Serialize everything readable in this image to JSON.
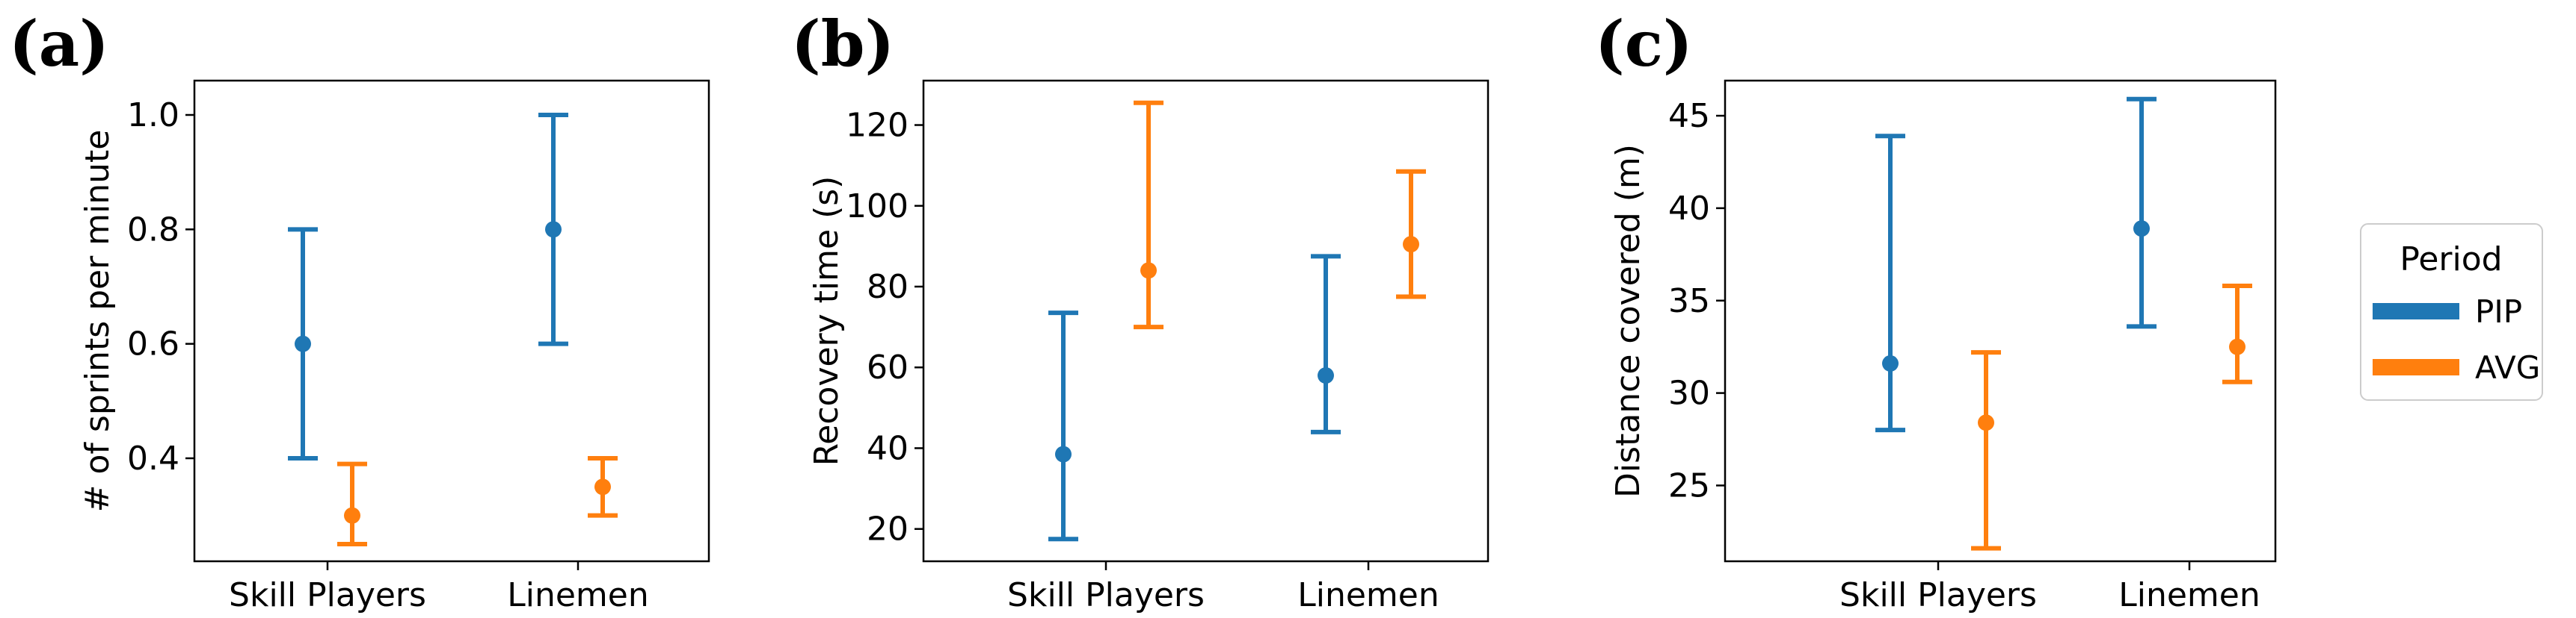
{
  "legend": {
    "title": "Period",
    "entries": [
      {
        "label": "PIP",
        "color": "#1f77b4"
      },
      {
        "label": "AVG",
        "color": "#ff7f0e"
      }
    ]
  },
  "chart_data": [
    {
      "panel": "(a)",
      "type": "errorbar",
      "ylabel": "# of sprints per minute",
      "categories": [
        "Skill Players",
        "Linemen"
      ],
      "ylim": [
        0.22,
        1.06
      ],
      "yticks": [
        0.4,
        0.6,
        0.8,
        1.0
      ],
      "ytick_labels": [
        "0.4",
        "0.6",
        "0.8",
        "1.0"
      ],
      "series": [
        {
          "name": "PIP",
          "color": "#1f77b4",
          "points": [
            {
              "mean": 0.6,
              "low": 0.4,
              "high": 0.8
            },
            {
              "mean": 0.8,
              "low": 0.6,
              "high": 1.0
            }
          ]
        },
        {
          "name": "AVG",
          "color": "#ff7f0e",
          "points": [
            {
              "mean": 0.3,
              "low": 0.25,
              "high": 0.39
            },
            {
              "mean": 0.35,
              "low": 0.3,
              "high": 0.4
            }
          ]
        }
      ]
    },
    {
      "panel": "(b)",
      "type": "errorbar",
      "ylabel": "Recovery time (s)",
      "categories": [
        "Skill Players",
        "Linemen"
      ],
      "ylim": [
        12,
        131
      ],
      "yticks": [
        20,
        40,
        60,
        80,
        100,
        120
      ],
      "ytick_labels": [
        "20",
        "40",
        "60",
        "80",
        "100",
        "120"
      ],
      "series": [
        {
          "name": "PIP",
          "color": "#1f77b4",
          "points": [
            {
              "mean": 38.5,
              "low": 17.5,
              "high": 73.5
            },
            {
              "mean": 58,
              "low": 44,
              "high": 87.5
            }
          ]
        },
        {
          "name": "AVG",
          "color": "#ff7f0e",
          "points": [
            {
              "mean": 84,
              "low": 70,
              "high": 125.5
            },
            {
              "mean": 90.5,
              "low": 77.5,
              "high": 108.5
            }
          ]
        }
      ]
    },
    {
      "panel": "(c)",
      "type": "errorbar",
      "ylabel": "Distance covered (m)",
      "categories": [
        "Skill Players",
        "Linemen"
      ],
      "ylim": [
        20.9,
        46.9
      ],
      "yticks": [
        25,
        30,
        35,
        40,
        45
      ],
      "ytick_labels": [
        "25",
        "30",
        "35",
        "40",
        "45"
      ],
      "series": [
        {
          "name": "PIP",
          "color": "#1f77b4",
          "points": [
            {
              "mean": 31.6,
              "low": 28.0,
              "high": 43.9
            },
            {
              "mean": 38.9,
              "low": 33.6,
              "high": 45.9
            }
          ]
        },
        {
          "name": "AVG",
          "color": "#ff7f0e",
          "points": [
            {
              "mean": 28.4,
              "low": 21.6,
              "high": 32.2
            },
            {
              "mean": 32.5,
              "low": 30.6,
              "high": 35.8
            }
          ]
        }
      ]
    }
  ]
}
